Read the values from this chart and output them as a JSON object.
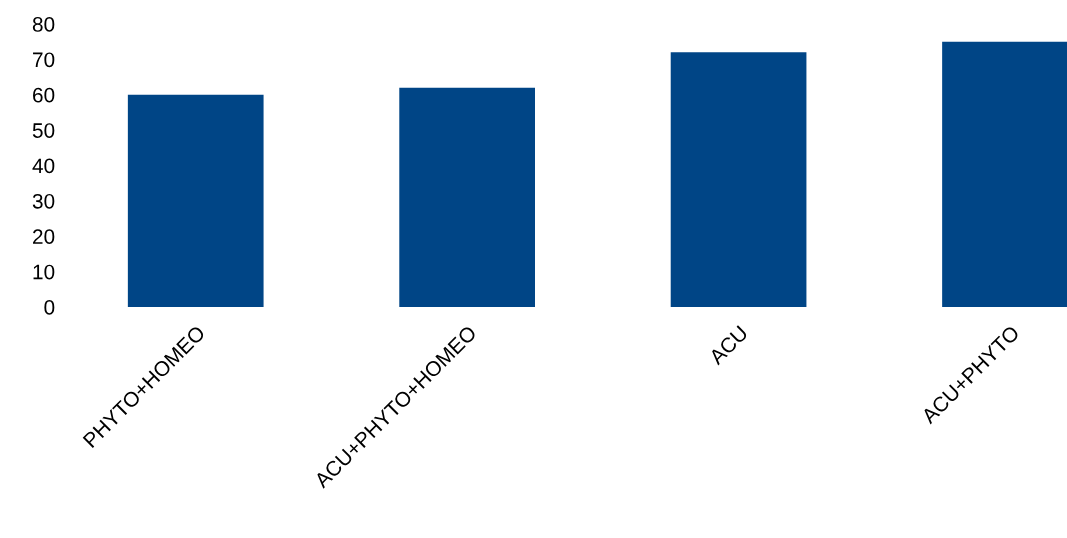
{
  "chart_data": {
    "type": "bar",
    "categories": [
      "PHYTO+HOMEO",
      "ACU+PHYTO+HOMEO",
      "ACU",
      "ACU+PHYTO"
    ],
    "values": [
      60,
      62,
      72,
      75
    ],
    "color": "#004586",
    "ylim": [
      0,
      80
    ],
    "yticks": [
      0,
      10,
      20,
      30,
      40,
      50,
      60,
      70,
      80
    ],
    "grid": false,
    "legend": false
  }
}
